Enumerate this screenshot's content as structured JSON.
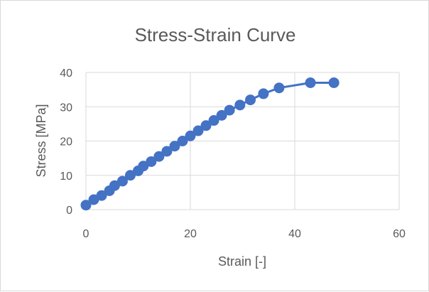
{
  "chart_data": {
    "type": "scatter",
    "title": "Stress-Strain Curve",
    "xlabel": "Strain [-]",
    "ylabel": "Stress [MPa]",
    "xlim": [
      0,
      60
    ],
    "ylim": [
      0,
      40
    ],
    "x_ticks": [
      "0",
      "20",
      "40",
      "60"
    ],
    "y_ticks": [
      "0",
      "10",
      "20",
      "30",
      "40"
    ],
    "grid": true,
    "legend": "none",
    "color": "#4472C4",
    "series": [
      {
        "x": [
          0,
          1.5,
          3,
          4.5,
          5.5,
          7,
          8.5,
          10,
          11,
          12.5,
          14,
          15.5,
          17,
          18.5,
          20,
          21.5,
          23,
          24.5,
          26,
          27.5,
          29.5,
          31.5,
          34,
          37,
          43,
          47.5
        ],
        "y": [
          1.3,
          2.9,
          4.1,
          5.5,
          7.0,
          8.3,
          10.0,
          11.3,
          12.7,
          14.0,
          15.5,
          17.0,
          18.5,
          20.0,
          21.5,
          23.0,
          24.5,
          26.0,
          27.5,
          29.0,
          30.5,
          32.0,
          33.8,
          35.5,
          37.0,
          37.0
        ]
      }
    ]
  }
}
